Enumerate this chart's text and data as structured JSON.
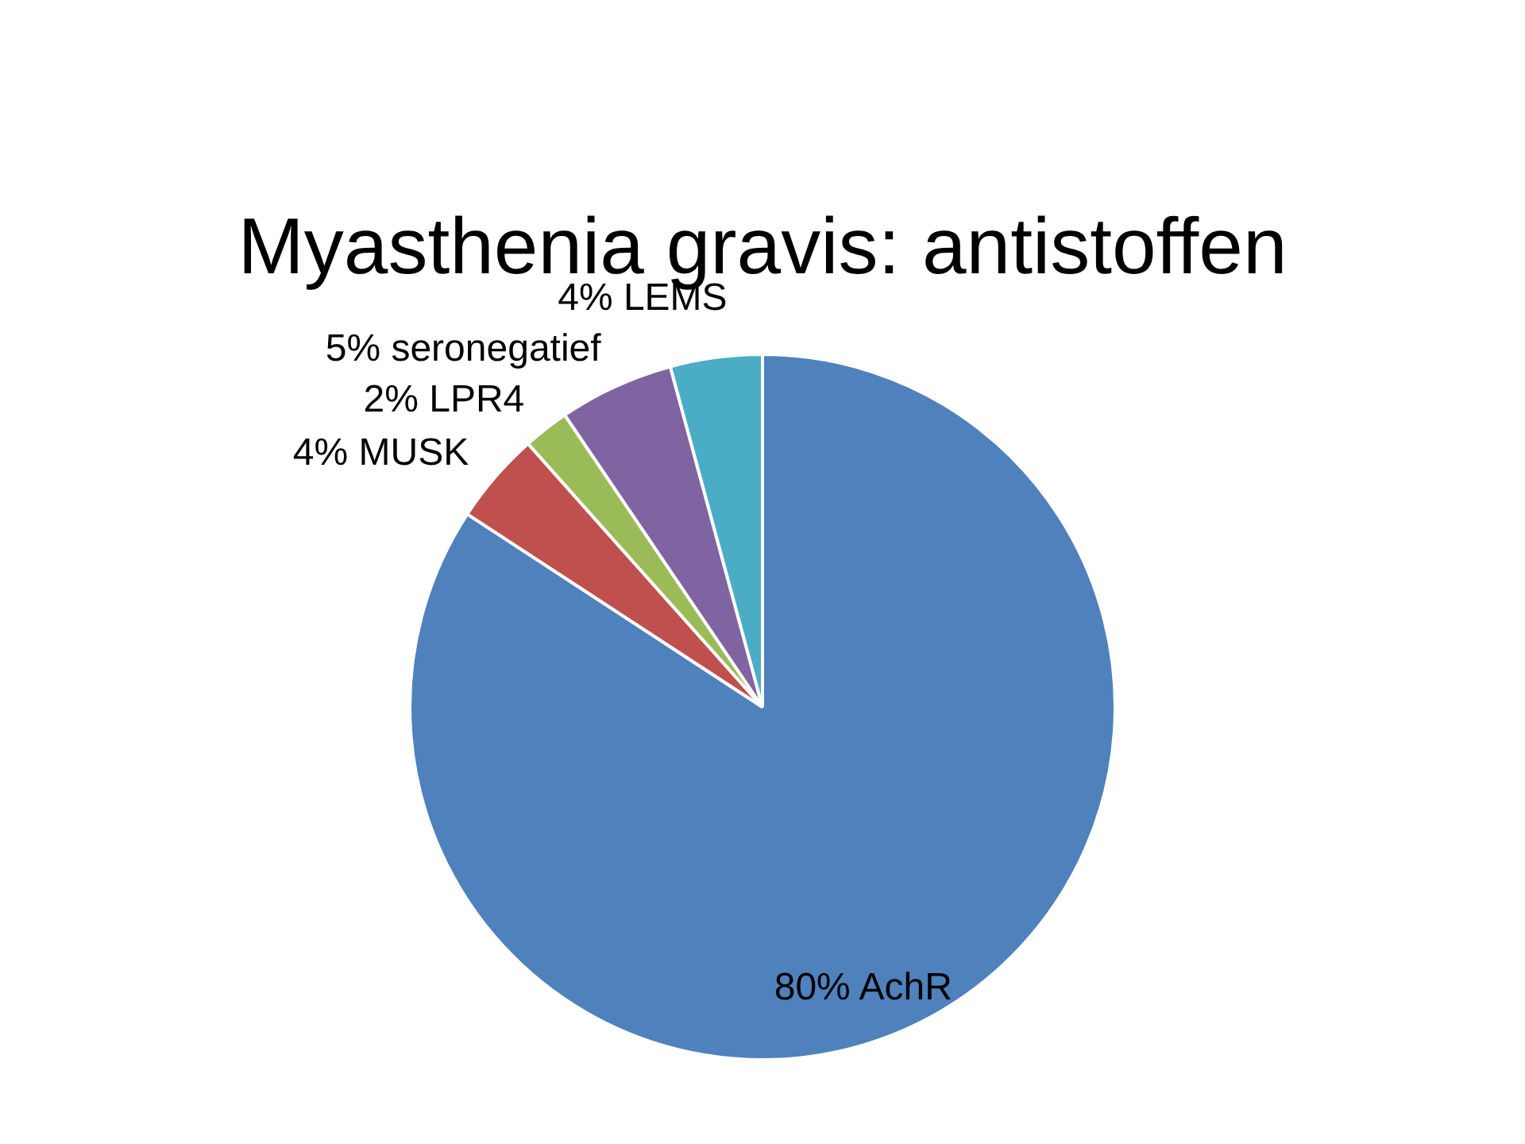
{
  "chart_data": {
    "type": "pie",
    "title": "Myasthenia gravis: antistoffen",
    "categories": [
      "AchR",
      "MUSK",
      "LPR4",
      "seronegatief",
      "LEMS"
    ],
    "values": [
      80,
      4,
      2,
      5,
      4
    ],
    "value_labels": [
      "80%",
      "4%",
      "2%",
      "5%",
      "4%"
    ],
    "colors": [
      "#4f81bd",
      "#c0504d",
      "#9bbb59",
      "#8064a2",
      "#4bacc6"
    ],
    "legend": false
  }
}
